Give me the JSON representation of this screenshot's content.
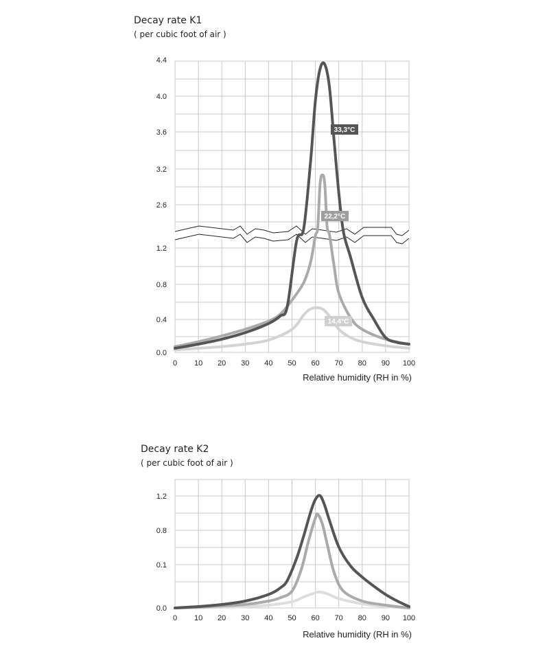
{
  "chart_data": [
    {
      "type": "line",
      "title": "Decay rate K1",
      "subtitle": "( per cubic foot of air )",
      "xlabel": "Relative humidity (RH in %)",
      "x_ticks": [
        0,
        10,
        20,
        30,
        40,
        50,
        60,
        70,
        80,
        90,
        100
      ],
      "y_ticks": [
        "0.0",
        "0.4",
        "0.8",
        "1.2",
        "2.6",
        "3.2",
        "3.6",
        "4.0",
        "4.4"
      ],
      "y_axis_break": "between 1.2 and 2.6",
      "xlim": [
        0,
        100
      ],
      "grid": true,
      "series": [
        {
          "name": "33,3°C",
          "color": "#555555",
          "points": [
            [
              0,
              0.05
            ],
            [
              10,
              0.1
            ],
            [
              20,
              0.16
            ],
            [
              30,
              0.24
            ],
            [
              40,
              0.35
            ],
            [
              45,
              0.44
            ],
            [
              48,
              0.55
            ],
            [
              52,
              1.3
            ],
            [
              55,
              2.3
            ],
            [
              58,
              3.3
            ],
            [
              60,
              3.95
            ],
            [
              62,
              4.3
            ],
            [
              64,
              4.35
            ],
            [
              66,
              4.1
            ],
            [
              68,
              3.5
            ],
            [
              70,
              2.8
            ],
            [
              72,
              1.9
            ],
            [
              75,
              1.1
            ],
            [
              80,
              0.65
            ],
            [
              85,
              0.4
            ],
            [
              90,
              0.18
            ],
            [
              95,
              0.12
            ],
            [
              100,
              0.1
            ]
          ]
        },
        {
          "name": "22,2°C",
          "color": "#aaaaaa",
          "points": [
            [
              0,
              0.07
            ],
            [
              10,
              0.13
            ],
            [
              20,
              0.2
            ],
            [
              30,
              0.28
            ],
            [
              40,
              0.38
            ],
            [
              45,
              0.46
            ],
            [
              50,
              0.62
            ],
            [
              55,
              0.82
            ],
            [
              58,
              1.05
            ],
            [
              60,
              1.5
            ],
            [
              61,
              2.4
            ],
            [
              62,
              2.95
            ],
            [
              63,
              3.1
            ],
            [
              64,
              2.95
            ],
            [
              65,
              2.5
            ],
            [
              66,
              1.6
            ],
            [
              68,
              1.0
            ],
            [
              70,
              0.7
            ],
            [
              75,
              0.42
            ],
            [
              80,
              0.28
            ],
            [
              90,
              0.16
            ],
            [
              100,
              0.1
            ]
          ]
        },
        {
          "name": "14,4°C",
          "color": "#d3d3d3",
          "points": [
            [
              0,
              0.03
            ],
            [
              10,
              0.05
            ],
            [
              20,
              0.07
            ],
            [
              30,
              0.1
            ],
            [
              40,
              0.15
            ],
            [
              50,
              0.28
            ],
            [
              55,
              0.45
            ],
            [
              58,
              0.52
            ],
            [
              62,
              0.53
            ],
            [
              65,
              0.47
            ],
            [
              70,
              0.28
            ],
            [
              75,
              0.18
            ],
            [
              80,
              0.13
            ],
            [
              90,
              0.08
            ],
            [
              100,
              0.05
            ]
          ]
        }
      ]
    },
    {
      "type": "line",
      "title": "Decay rate K2",
      "subtitle": "( per cubic foot of air )",
      "xlabel": "Relative humidity (RH in %)",
      "x_ticks": [
        0,
        10,
        20,
        30,
        40,
        50,
        60,
        70,
        80,
        90,
        100
      ],
      "y_ticks": [
        "0.0",
        "0.1",
        "0.8",
        "1.2"
      ],
      "xlim": [
        0,
        100
      ],
      "grid": true,
      "series": [
        {
          "color": "#555555",
          "points": [
            [
              0,
              0.0
            ],
            [
              10,
              0.02
            ],
            [
              20,
              0.05
            ],
            [
              30,
              0.1
            ],
            [
              40,
              0.18
            ],
            [
              45,
              0.26
            ],
            [
              48,
              0.35
            ],
            [
              52,
              0.55
            ],
            [
              55,
              0.75
            ],
            [
              58,
              0.95
            ],
            [
              60,
              1.05
            ],
            [
              62,
              1.08
            ],
            [
              64,
              1.0
            ],
            [
              66,
              0.88
            ],
            [
              70,
              0.65
            ],
            [
              75,
              0.48
            ],
            [
              80,
              0.38
            ],
            [
              85,
              0.28
            ],
            [
              90,
              0.18
            ],
            [
              95,
              0.1
            ],
            [
              100,
              0.02
            ]
          ]
        },
        {
          "color": "#aaaaaa",
          "points": [
            [
              0,
              0.0
            ],
            [
              10,
              0.01
            ],
            [
              20,
              0.03
            ],
            [
              30,
              0.05
            ],
            [
              40,
              0.1
            ],
            [
              45,
              0.14
            ],
            [
              50,
              0.22
            ],
            [
              54,
              0.45
            ],
            [
              57,
              0.7
            ],
            [
              60,
              0.9
            ],
            [
              61,
              0.93
            ],
            [
              63,
              0.85
            ],
            [
              65,
              0.68
            ],
            [
              68,
              0.42
            ],
            [
              72,
              0.22
            ],
            [
              80,
              0.1
            ],
            [
              90,
              0.04
            ],
            [
              100,
              0.0
            ]
          ]
        },
        {
          "color": "#dddddd",
          "points": [
            [
              0,
              0.0
            ],
            [
              20,
              0.01
            ],
            [
              30,
              0.02
            ],
            [
              40,
              0.04
            ],
            [
              50,
              0.09
            ],
            [
              55,
              0.15
            ],
            [
              60,
              0.2
            ],
            [
              62,
              0.21
            ],
            [
              65,
              0.19
            ],
            [
              70,
              0.13
            ],
            [
              80,
              0.06
            ],
            [
              90,
              0.02
            ],
            [
              100,
              0.0
            ]
          ]
        }
      ]
    }
  ]
}
